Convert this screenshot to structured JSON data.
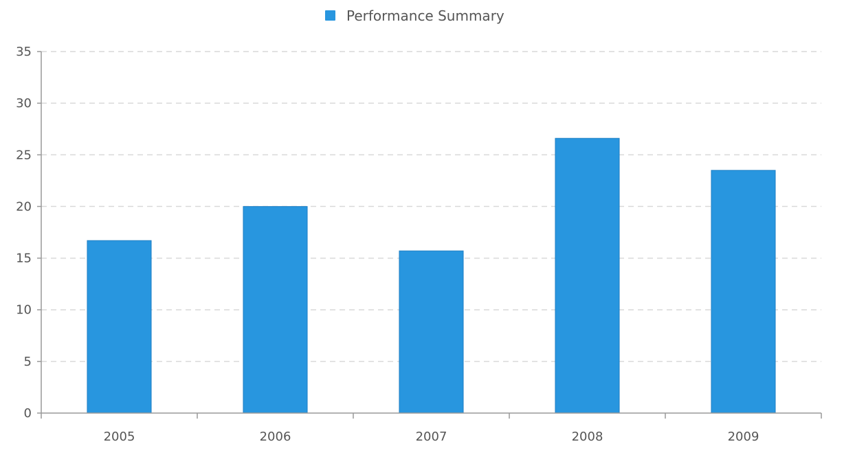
{
  "chart_data": {
    "type": "bar",
    "title": "",
    "xlabel": "",
    "ylabel": "",
    "categories": [
      "2005",
      "2006",
      "2007",
      "2008",
      "2009"
    ],
    "series": [
      {
        "name": "Performance Summary",
        "values": [
          16.7,
          20.0,
          15.7,
          26.6,
          23.5
        ],
        "color": "#2896df"
      }
    ],
    "ylim": [
      0,
      35
    ],
    "yticks": [
      "0",
      "5",
      "10",
      "15",
      "20",
      "25",
      "30",
      "35"
    ],
    "grid": true,
    "legend_position": "top-center"
  }
}
